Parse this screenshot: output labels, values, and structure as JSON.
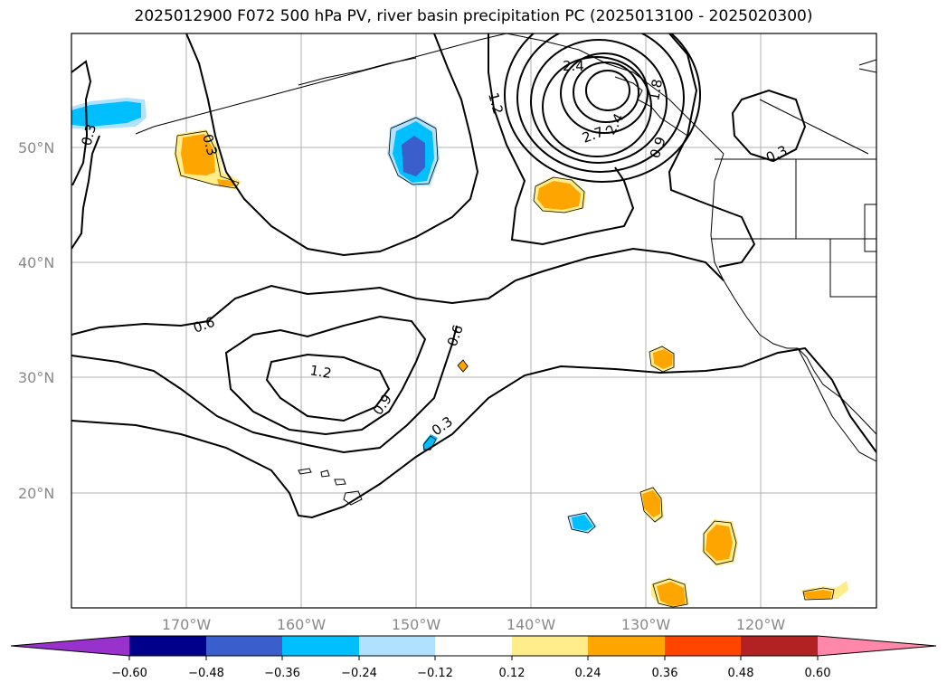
{
  "map": {
    "title": "2025012900 F072 500 hPa PV, river basin precipitation PC (2025013100 - 2025020300)",
    "lon_ticks": [
      "170°W",
      "160°W",
      "150°W",
      "140°W",
      "130°W",
      "120°W"
    ],
    "lat_ticks": [
      "50°N",
      "40°N",
      "30°N",
      "20°N"
    ],
    "contour_labels": [
      "0.3",
      "0.3",
      "0.6",
      "1.2",
      "0.9",
      "0.6",
      "0.3",
      "1.2",
      "2.4",
      "2.7",
      "2.4",
      "1.8",
      "0.9",
      "0.3"
    ],
    "grid": true,
    "projection": "lat-lon",
    "extent": {
      "lon": [
        -180,
        -110
      ],
      "lat": [
        10,
        60
      ]
    }
  },
  "colorbar": {
    "ticks": [
      "−0.60",
      "−0.48",
      "−0.36",
      "−0.24",
      "−0.12",
      "0.12",
      "0.24",
      "0.36",
      "0.48",
      "0.60"
    ],
    "colors": [
      "#9932cc",
      "#00008b",
      "#3a5fcd",
      "#00bfff",
      "#b0e2ff",
      "#ffffff",
      "#ffec8b",
      "#ffa500",
      "#ff4500",
      "#b22222",
      "#ff88aa"
    ],
    "extend": "both"
  }
}
